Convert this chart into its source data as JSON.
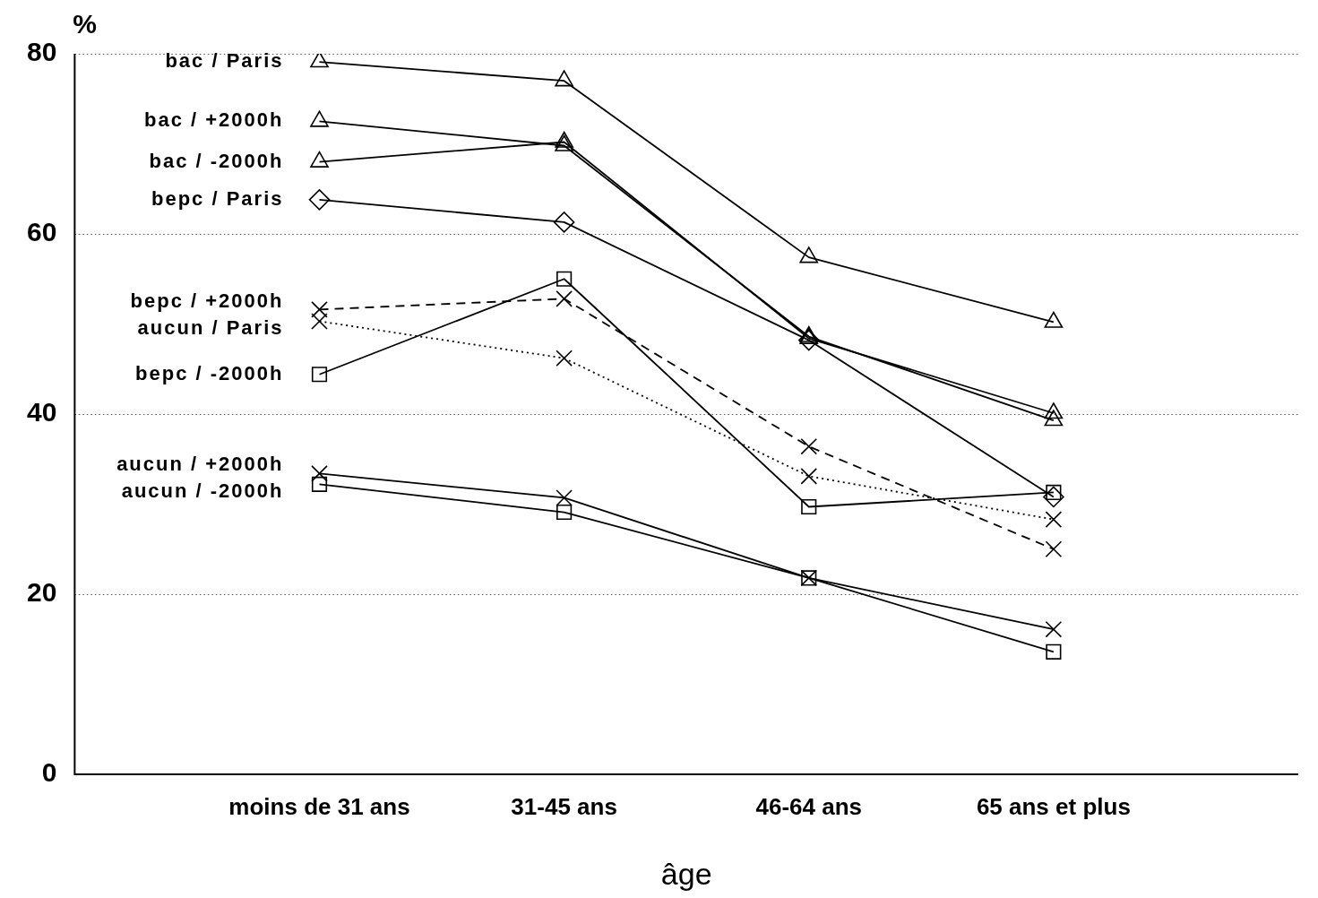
{
  "chart_data": {
    "type": "line",
    "xlabel": "âge",
    "ylabel": "%",
    "categories": [
      "moins de 31 ans",
      "31-45 ans",
      "46-64 ans",
      "65 ans et plus"
    ],
    "ylim": [
      0,
      80
    ],
    "yticks": [
      0,
      20,
      40,
      60,
      80
    ],
    "grid": "y",
    "legend": "left",
    "series": [
      {
        "name": "bac / Paris",
        "color": "#000000",
        "marker": "triangle",
        "line_style": "solid",
        "values": [
          79.1,
          77.0,
          57.4,
          50.2
        ]
      },
      {
        "name": "bac / +2000h",
        "color": "#000000",
        "marker": "triangle",
        "line_style": "solid",
        "values": [
          72.5,
          69.8,
          48.6,
          39.3
        ]
      },
      {
        "name": "bac / -2000h",
        "color": "#000000",
        "marker": "triangle",
        "line_style": "solid",
        "values": [
          68.0,
          70.2,
          48.4,
          40.1
        ]
      },
      {
        "name": "bepc / Paris",
        "color": "#000000",
        "marker": "diamond",
        "line_style": "solid",
        "values": [
          63.8,
          61.3,
          48.2,
          30.8
        ]
      },
      {
        "name": "bepc / +2000h",
        "color": "#000000",
        "marker": "cross",
        "line_style": "dashed",
        "values": [
          51.6,
          52.8,
          36.4,
          25.0
        ]
      },
      {
        "name": "aucun / Paris",
        "color": "#000000",
        "marker": "cross",
        "line_style": "dotted",
        "values": [
          50.3,
          46.2,
          33.1,
          28.3
        ]
      },
      {
        "name": "bepc / -2000h",
        "color": "#000000",
        "marker": "square",
        "line_style": "solid",
        "values": [
          44.4,
          55.0,
          29.7,
          31.3
        ]
      },
      {
        "name": "aucun / +2000h",
        "color": "#000000",
        "marker": "cross",
        "line_style": "solid",
        "values": [
          33.4,
          30.7,
          21.8,
          16.1
        ]
      },
      {
        "name": "aucun / -2000h",
        "color": "#000000",
        "marker": "square",
        "line_style": "solid",
        "values": [
          32.2,
          29.1,
          21.8,
          13.6
        ]
      }
    ]
  }
}
